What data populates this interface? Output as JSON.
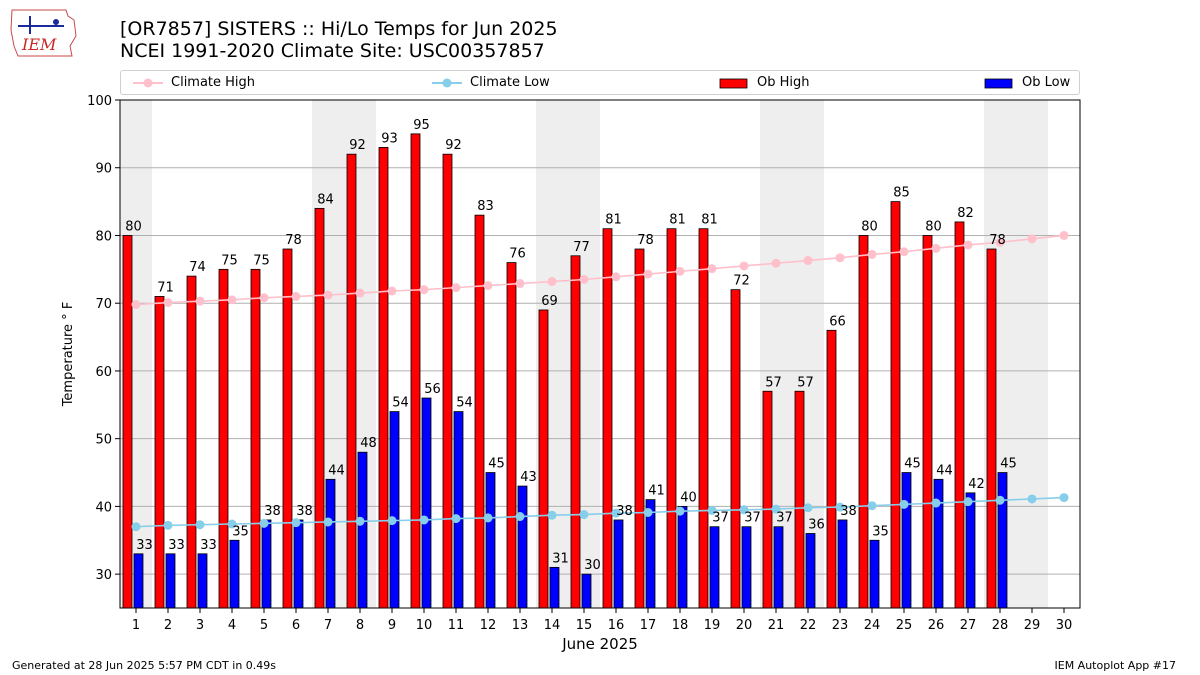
{
  "header": {
    "title_line1": "[OR7857] SISTERS :: Hi/Lo Temps for Jun 2025",
    "title_line2": "NCEI 1991-2020 Climate Site: USC00357857",
    "logo_text": "IEM"
  },
  "legend": {
    "climate_high": "Climate High",
    "climate_low": "Climate Low",
    "ob_high": "Ob High",
    "ob_low": "Ob Low"
  },
  "colors": {
    "ob_high": "#ff0000",
    "ob_low": "#0000ff",
    "climate_high": "#ffc0cb",
    "climate_low": "#87ceeb",
    "weekend_shade": "#eeeeee",
    "grid": "#b0b0b0"
  },
  "footer": {
    "generated": "Generated at 28 Jun 2025 5:57 PM CDT in 0.49s",
    "app": "IEM Autoplot App #17"
  },
  "chart_data": {
    "type": "bar",
    "title": "[OR7857] SISTERS :: Hi/Lo Temps for Jun 2025",
    "subtitle": "NCEI 1991-2020 Climate Site: USC00357857",
    "xlabel": "June 2025",
    "ylabel": "Temperature ° F",
    "ylim": [
      25,
      100
    ],
    "yticks": [
      30,
      40,
      50,
      60,
      70,
      80,
      90,
      100
    ],
    "grid": "horizontal",
    "legend_position": "top",
    "x": [
      1,
      2,
      3,
      4,
      5,
      6,
      7,
      8,
      9,
      10,
      11,
      12,
      13,
      14,
      15,
      16,
      17,
      18,
      19,
      20,
      21,
      22,
      23,
      24,
      25,
      26,
      27,
      28,
      29,
      30
    ],
    "shaded_days": [
      1,
      7,
      8,
      14,
      15,
      21,
      22,
      28,
      29
    ],
    "series": [
      {
        "name": "Ob High",
        "kind": "bar",
        "values": [
          80,
          71,
          74,
          75,
          75,
          78,
          84,
          92,
          93,
          95,
          92,
          83,
          76,
          69,
          77,
          81,
          78,
          81,
          81,
          72,
          57,
          57,
          66,
          80,
          85,
          80,
          82,
          78,
          null,
          null
        ]
      },
      {
        "name": "Ob Low",
        "kind": "bar",
        "values": [
          33,
          33,
          33,
          35,
          38,
          38,
          44,
          48,
          54,
          56,
          54,
          45,
          43,
          31,
          30,
          38,
          41,
          40,
          37,
          37,
          37,
          36,
          38,
          35,
          45,
          44,
          42,
          45,
          null,
          null
        ]
      },
      {
        "name": "Climate High",
        "kind": "line",
        "values": [
          69.8,
          70.1,
          70.3,
          70.5,
          70.8,
          71.0,
          71.2,
          71.5,
          71.8,
          72.0,
          72.3,
          72.6,
          72.9,
          73.2,
          73.5,
          73.9,
          74.3,
          74.7,
          75.1,
          75.5,
          75.9,
          76.3,
          76.7,
          77.2,
          77.6,
          78.1,
          78.6,
          79.0,
          79.5,
          80.0
        ]
      },
      {
        "name": "Climate Low",
        "kind": "line",
        "values": [
          37.0,
          37.2,
          37.3,
          37.4,
          37.5,
          37.6,
          37.7,
          37.8,
          37.9,
          38.0,
          38.2,
          38.3,
          38.5,
          38.7,
          38.8,
          39.0,
          39.1,
          39.3,
          39.4,
          39.5,
          39.6,
          39.8,
          39.9,
          40.1,
          40.3,
          40.5,
          40.7,
          40.9,
          41.1,
          41.3
        ]
      }
    ]
  }
}
